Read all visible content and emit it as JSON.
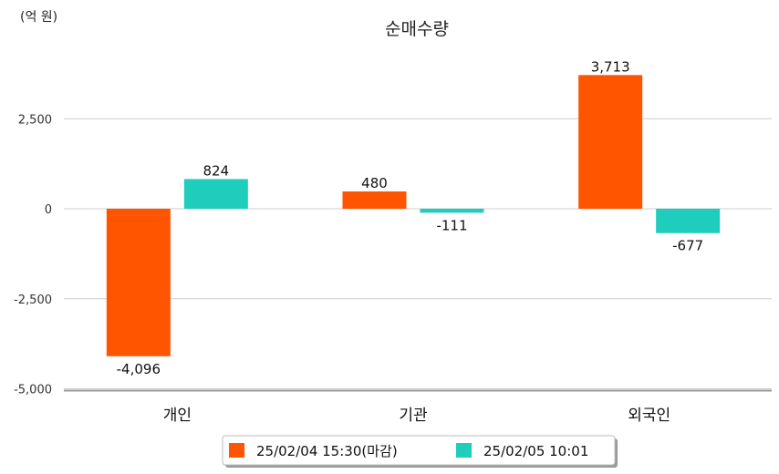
{
  "chart_data": {
    "type": "bar",
    "title": "순매수량",
    "unit": "(억 원)",
    "categories": [
      "개인",
      "기관",
      "외국인"
    ],
    "series": [
      {
        "name": "25/02/04 15:30(마감)",
        "color": "#ff5400",
        "values": [
          -4096,
          480,
          3713
        ],
        "labels": [
          "-4,096",
          "480",
          "3,713"
        ]
      },
      {
        "name": "25/02/05 10:01",
        "color": "#1ecdbb",
        "values": [
          824,
          -111,
          -677
        ],
        "labels": [
          "824",
          "-111",
          "-677"
        ]
      }
    ],
    "yticks": [
      2500,
      0,
      -2500,
      -5000
    ],
    "ytick_labels": [
      "2,500",
      "0",
      "-2,500",
      "-5,000"
    ],
    "ylim": [
      -5000,
      4500
    ],
    "grid": true,
    "legend_position": "bottom-center"
  }
}
